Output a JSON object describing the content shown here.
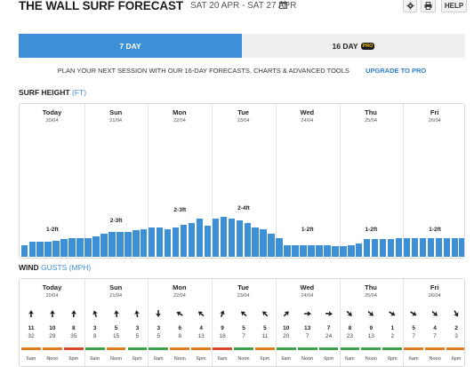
{
  "header": {
    "title": "THE WALL SURF FORECAST",
    "date_range": "SAT 20 APR - SAT 27 APR",
    "calendar_icon": "calendar-icon",
    "settings_icon": "gear-icon",
    "print_icon": "printer-icon",
    "help_label": "HELP"
  },
  "tabs": {
    "seven_day": "7 DAY",
    "sixteen_day": "16 DAY",
    "pro_badge": "PRO"
  },
  "promo": {
    "text": "PLAN YOUR NEXT SESSION WITH OUR 16-DAY FORECASTS, CHARTS & ADVANCED TOOLS",
    "link": "UPGRADE TO PRO"
  },
  "surf": {
    "title": "SURF HEIGHT",
    "unit": "(FT)"
  },
  "wind": {
    "title": "WIND",
    "subtitle": "GUSTS (MPH)"
  },
  "days": [
    {
      "name": "Today",
      "date": "20/04"
    },
    {
      "name": "Sun",
      "date": "21/04"
    },
    {
      "name": "Mon",
      "date": "22/04"
    },
    {
      "name": "Tue",
      "date": "23/04"
    },
    {
      "name": "Wed",
      "date": "24/04"
    },
    {
      "name": "Thu",
      "date": "25/04"
    },
    {
      "name": "Fri",
      "date": "26/04"
    }
  ],
  "surf_labels": [
    "1-2ft",
    "2-3ft",
    "2-3ft",
    "2-4ft",
    "1-2ft",
    "1-2ft",
    "1-2ft"
  ],
  "surf_heights_ft": [
    0.8,
    1.0,
    1.0,
    1.0,
    1.1,
    1.2,
    1.3,
    1.3,
    1.3,
    1.4,
    1.6,
    1.7,
    1.7,
    1.7,
    1.8,
    1.9,
    2.0,
    2.0,
    1.9,
    2.0,
    2.2,
    2.3,
    2.6,
    2.1,
    2.6,
    2.7,
    2.6,
    2.5,
    2.3,
    2.0,
    1.9,
    1.6,
    1.3,
    0.8,
    0.8,
    0.8,
    0.8,
    0.8,
    0.8,
    0.7,
    0.7,
    0.8,
    0.9,
    1.2,
    1.2,
    1.2,
    1.2,
    1.3,
    1.3,
    1.3,
    1.3,
    1.3,
    1.3,
    1.3,
    1.3,
    1.3
  ],
  "times": [
    "6am",
    "Noon",
    "6pm"
  ],
  "wind_values": [
    {
      "speed": [
        11,
        10,
        8
      ],
      "gust": [
        32,
        29,
        35
      ],
      "dir": [
        0,
        0,
        5
      ],
      "rating": [
        "#e07b20",
        "#e07b20",
        "#d6452c"
      ]
    },
    {
      "speed": [
        3,
        5,
        3
      ],
      "gust": [
        8,
        15,
        5
      ],
      "dir": [
        340,
        355,
        350
      ],
      "rating": [
        "#3aa04a",
        "#e07b20",
        "#3aa04a"
      ]
    },
    {
      "speed": [
        3,
        6,
        4
      ],
      "gust": [
        5,
        8,
        13
      ],
      "dir": [
        180,
        300,
        310
      ],
      "rating": [
        "#3aa04a",
        "#e07b20",
        "#e07b20"
      ]
    },
    {
      "speed": [
        9,
        5,
        5
      ],
      "gust": [
        18,
        7,
        11
      ],
      "dir": [
        20,
        310,
        315
      ],
      "rating": [
        "#d6452c",
        "#3aa04a",
        "#e07b20"
      ]
    },
    {
      "speed": [
        10,
        13,
        7
      ],
      "gust": [
        20,
        7,
        24
      ],
      "dir": [
        45,
        90,
        95
      ],
      "rating": [
        "#3aa04a",
        "#3aa04a",
        "#3aa04a"
      ]
    },
    {
      "speed": [
        8,
        9,
        1
      ],
      "gust": [
        23,
        13,
        2
      ],
      "dir": [
        135,
        130,
        120
      ],
      "rating": [
        "#3aa04a",
        "#3aa04a",
        "#3aa04a"
      ]
    },
    {
      "speed": [
        5,
        4,
        2
      ],
      "gust": [
        7,
        7,
        3
      ],
      "dir": [
        120,
        130,
        150
      ],
      "rating": [
        "#e07b20",
        "#e07b20",
        "#e07b20"
      ]
    }
  ],
  "colors": {
    "accent": "#3d8fd6",
    "pro_badge": "#f4c20d",
    "rating_good": "#3aa04a",
    "rating_fair": "#e07b20",
    "rating_poor": "#d6452c"
  }
}
